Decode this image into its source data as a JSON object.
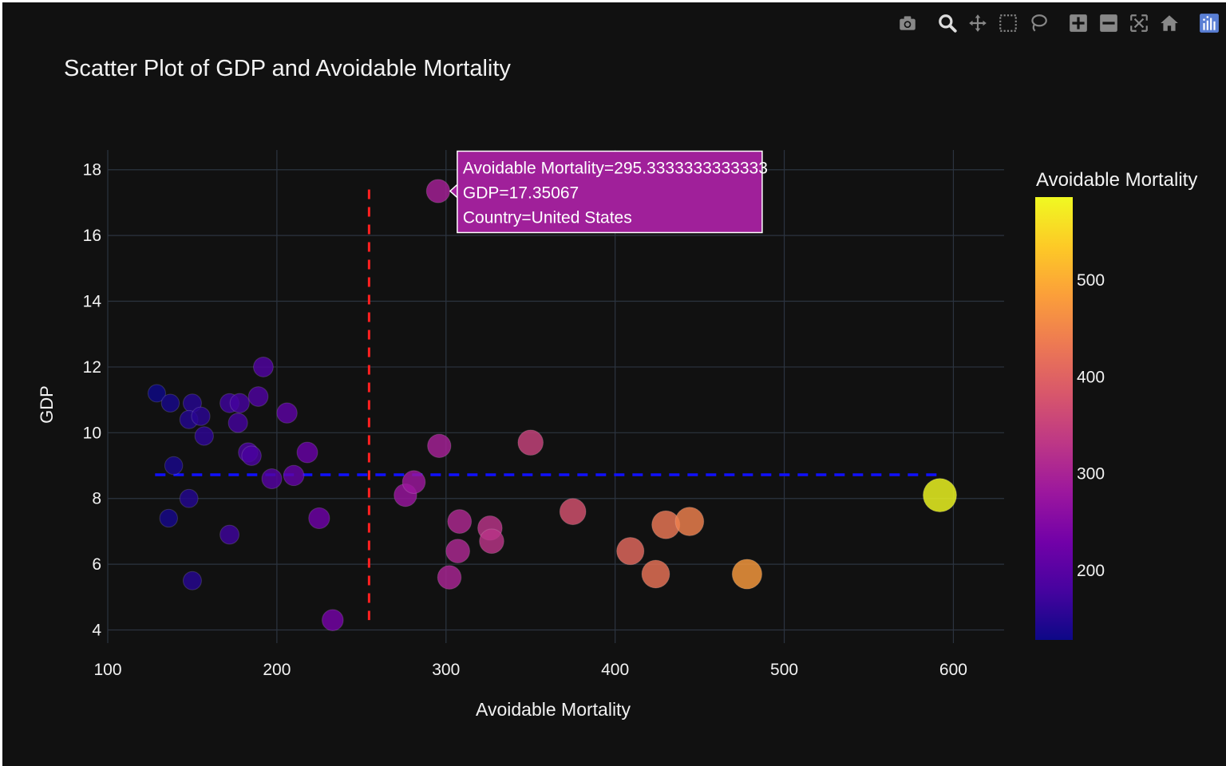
{
  "modebar": {
    "buttons": [
      {
        "name": "download-plot-camera-icon"
      },
      {
        "name": "zoom-icon"
      },
      {
        "name": "pan-icon"
      },
      {
        "name": "box-select-icon"
      },
      {
        "name": "lasso-select-icon"
      },
      {
        "name": "zoom-in-icon"
      },
      {
        "name": "zoom-out-icon"
      },
      {
        "name": "autoscale-icon"
      },
      {
        "name": "reset-axes-home-icon"
      },
      {
        "name": "plotly-logo-icon"
      }
    ]
  },
  "chart_data": {
    "type": "scatter",
    "title": "Scatter Plot of GDP and Avoidable Mortality",
    "xlabel": "Avoidable Mortality",
    "ylabel": "GDP",
    "xlim": [
      100,
      630
    ],
    "ylim": [
      3.6,
      18.6
    ],
    "xticks": [
      100,
      200,
      300,
      400,
      500,
      600
    ],
    "yticks": [
      4,
      6,
      8,
      10,
      12,
      14,
      16,
      18
    ],
    "grid": true,
    "colorbar": {
      "title": "Avoidable Mortality",
      "range": [
        128,
        586
      ],
      "ticks": [
        200,
        300,
        400,
        500
      ],
      "colorscale": "plasma"
    },
    "reference_lines": [
      {
        "orientation": "vertical",
        "x": 254.5,
        "y_from": 4.3,
        "y_to": 17.4,
        "color": "#ff2020",
        "style": "dashed"
      },
      {
        "orientation": "horizontal",
        "y": 8.72,
        "x_from": 128,
        "x_to": 592,
        "color": "#1010ff",
        "style": "dashed"
      }
    ],
    "points": [
      {
        "x": 129,
        "y": 11.2
      },
      {
        "x": 137,
        "y": 10.9
      },
      {
        "x": 150,
        "y": 10.9
      },
      {
        "x": 148,
        "y": 10.4
      },
      {
        "x": 155,
        "y": 10.5
      },
      {
        "x": 157,
        "y": 9.9
      },
      {
        "x": 139,
        "y": 9.0
      },
      {
        "x": 148,
        "y": 8.0
      },
      {
        "x": 136,
        "y": 7.4
      },
      {
        "x": 150,
        "y": 5.5
      },
      {
        "x": 172,
        "y": 10.9
      },
      {
        "x": 178,
        "y": 10.9
      },
      {
        "x": 177,
        "y": 10.3
      },
      {
        "x": 189,
        "y": 11.1
      },
      {
        "x": 192,
        "y": 12.0
      },
      {
        "x": 183,
        "y": 9.4
      },
      {
        "x": 185,
        "y": 9.3
      },
      {
        "x": 172,
        "y": 6.9
      },
      {
        "x": 206,
        "y": 10.6
      },
      {
        "x": 218,
        "y": 9.4
      },
      {
        "x": 197,
        "y": 8.6
      },
      {
        "x": 210,
        "y": 8.7
      },
      {
        "x": 225,
        "y": 7.4
      },
      {
        "x": 233,
        "y": 4.3
      },
      {
        "x": 276,
        "y": 8.1
      },
      {
        "x": 281,
        "y": 8.5
      },
      {
        "x": 295.3333333333333,
        "y": 17.35067,
        "country": "United States"
      },
      {
        "x": 296,
        "y": 9.6
      },
      {
        "x": 308,
        "y": 7.3
      },
      {
        "x": 307,
        "y": 6.4
      },
      {
        "x": 302,
        "y": 5.6
      },
      {
        "x": 326,
        "y": 7.1
      },
      {
        "x": 327,
        "y": 6.7
      },
      {
        "x": 350,
        "y": 9.7
      },
      {
        "x": 375,
        "y": 7.6
      },
      {
        "x": 409,
        "y": 6.4
      },
      {
        "x": 424,
        "y": 5.7
      },
      {
        "x": 430,
        "y": 7.2
      },
      {
        "x": 444,
        "y": 7.3
      },
      {
        "x": 478,
        "y": 5.7
      },
      {
        "x": 592,
        "y": 8.1
      }
    ],
    "hover": {
      "point_index": 26,
      "lines": [
        "Avoidable Mortality=295.3333333333333",
        "GDP=17.35067",
        "Country=United States"
      ]
    }
  }
}
